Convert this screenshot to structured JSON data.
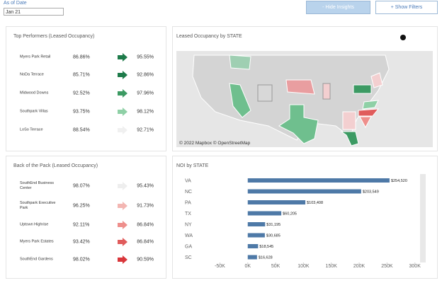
{
  "as_of_date": {
    "label": "As of Date",
    "value": "Jan 21"
  },
  "buttons": {
    "hide_insights": "- Hide Insights",
    "show_filters": "+ Show Filters"
  },
  "top_performers": {
    "title": "Top Performers (Leased Occupancy)",
    "rows": [
      {
        "name": "Myers Park Retail",
        "from": "86.86%",
        "to": "95.55%",
        "arrow_color": "#1e7b4a"
      },
      {
        "name": "NoDa Terrace",
        "from": "85.71%",
        "to": "92.86%",
        "arrow_color": "#1e7b4a"
      },
      {
        "name": "Midwood Downs",
        "from": "92.52%",
        "to": "97.96%",
        "arrow_color": "#3c9a63"
      },
      {
        "name": "Southpark Villas",
        "from": "93.75%",
        "to": "98.12%",
        "arrow_color": "#8fd0a6"
      },
      {
        "name": "LoSo Terrace",
        "from": "88.54%",
        "to": "92.71%",
        "arrow_color": "#f0f0f0"
      }
    ]
  },
  "back_of_pack": {
    "title": "Back of the Pack (Leased Occupancy)",
    "rows": [
      {
        "name": "SouthEnd Business Center",
        "from": "98.07%",
        "to": "95.43%",
        "arrow_color": "#eeeeee"
      },
      {
        "name": "Southpark Executive Park",
        "from": "96.25%",
        "to": "91.73%",
        "arrow_color": "#f3b6b2"
      },
      {
        "name": "Uptown Highrise",
        "from": "92.11%",
        "to": "86.84%",
        "arrow_color": "#ee8f8c"
      },
      {
        "name": "Myers Park Estates",
        "from": "93.42%",
        "to": "86.84%",
        "arrow_color": "#e05c5c"
      },
      {
        "name": "SouthEnd Gardens",
        "from": "98.02%",
        "to": "90.59%",
        "arrow_color": "#d9363b"
      }
    ]
  },
  "map": {
    "title": "Leased Occupancy by STATE",
    "attribution": "© 2022 Mapbox © OpenStreetMap"
  },
  "chart_data": {
    "type": "hbar",
    "title": "NOI by STATE",
    "color": "#4e79a7",
    "categories": [
      "VA",
      "NC",
      "PA",
      "TX",
      "NY",
      "WA",
      "GA",
      "SC"
    ],
    "values": [
      254520,
      203549,
      103408,
      60205,
      31195,
      30685,
      18545,
      16628
    ],
    "value_labels": [
      "$254,520",
      "$203,549",
      "$103,408",
      "$60,205",
      "$31,195",
      "$30,685",
      "$18,545",
      "$16,628"
    ],
    "xlim": [
      -62000,
      308000
    ],
    "xticks": [
      {
        "value": -50000,
        "label": "-50K"
      },
      {
        "value": 0,
        "label": "0K"
      },
      {
        "value": 50000,
        "label": "50K"
      },
      {
        "value": 100000,
        "label": "100K"
      },
      {
        "value": 150000,
        "label": "150K"
      },
      {
        "value": 200000,
        "label": "200K"
      },
      {
        "value": 250000,
        "label": "250K"
      },
      {
        "value": 300000,
        "label": "300K"
      }
    ]
  }
}
